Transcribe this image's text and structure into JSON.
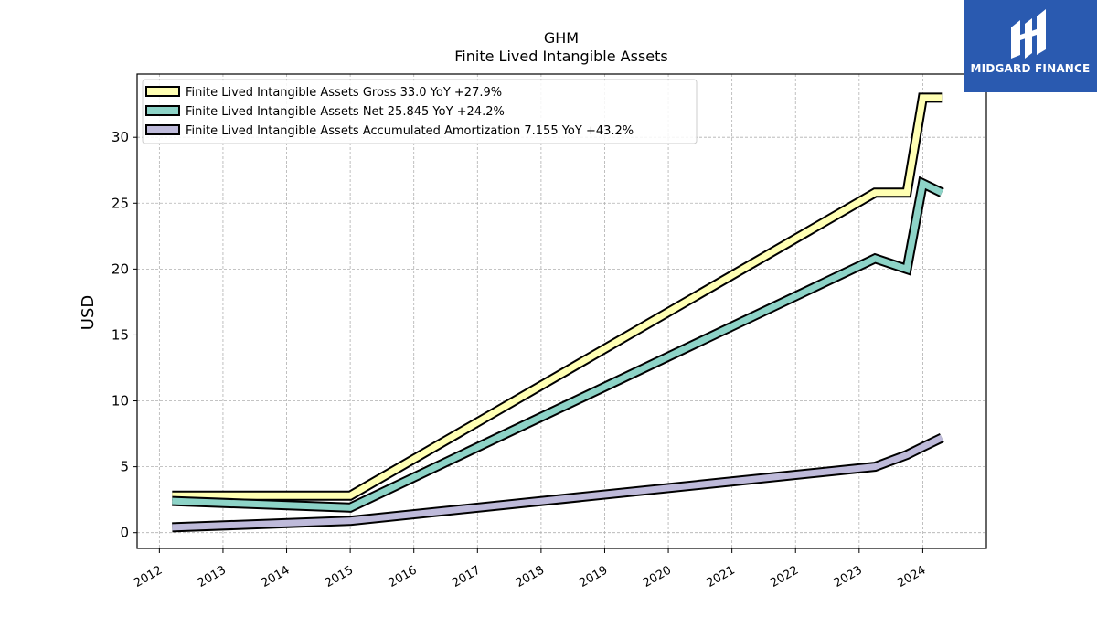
{
  "header": {
    "title": "GHM",
    "subtitle": "Finite Lived Intangible Assets"
  },
  "logo": {
    "text": "MIDGARD FINANCE",
    "color": "#2a5ab0"
  },
  "chart_data": {
    "type": "line",
    "title": "GHM",
    "subtitle": "Finite Lived Intangible Assets",
    "xlabel": "",
    "ylabel": "USD",
    "xlim": [
      2011.65,
      2025.0
    ],
    "ylim": [
      -1.2,
      34.8
    ],
    "x_ticks": [
      2012,
      2013,
      2014,
      2015,
      2016,
      2017,
      2018,
      2019,
      2020,
      2021,
      2022,
      2023,
      2024
    ],
    "x_tick_labels": [
      "2012",
      "2013",
      "2014",
      "2015",
      "2016",
      "2017",
      "2018",
      "2019",
      "2020",
      "2021",
      "2022",
      "2023",
      "2024"
    ],
    "y_ticks": [
      0,
      5,
      10,
      15,
      20,
      25,
      30
    ],
    "y_tick_labels": [
      "0",
      "5",
      "10",
      "15",
      "20",
      "25",
      "30"
    ],
    "grid": true,
    "legend_position": "top-left",
    "series": [
      {
        "name": "Finite Lived Intangible Assets Gross",
        "legend_label": "Finite Lived Intangible Assets Gross  33.0 YoY +27.9%",
        "color": "#ffffb3",
        "x": [
          2012.2,
          2015.0,
          2023.25,
          2023.75,
          2024.0,
          2024.3
        ],
        "y": [
          2.8,
          2.8,
          25.8,
          25.8,
          33.0,
          33.0
        ]
      },
      {
        "name": "Finite Lived Intangible Assets Net",
        "legend_label": "Finite Lived Intangible Assets Net  25.845 YoY +24.2%",
        "color": "#8dd3c7",
        "x": [
          2012.2,
          2015.0,
          2023.25,
          2023.75,
          2024.0,
          2024.3
        ],
        "y": [
          2.4,
          1.9,
          20.8,
          20.0,
          26.5,
          25.8
        ]
      },
      {
        "name": "Finite Lived Intangible Assets Accumulated Amortization",
        "legend_label": "Finite Lived Intangible Assets Accumulated Amortization  7.155 YoY +43.2%",
        "color": "#bebada",
        "x": [
          2012.2,
          2015.0,
          2023.25,
          2023.75,
          2024.0,
          2024.3
        ],
        "y": [
          0.4,
          0.9,
          5.0,
          5.9,
          6.5,
          7.2
        ]
      }
    ]
  }
}
